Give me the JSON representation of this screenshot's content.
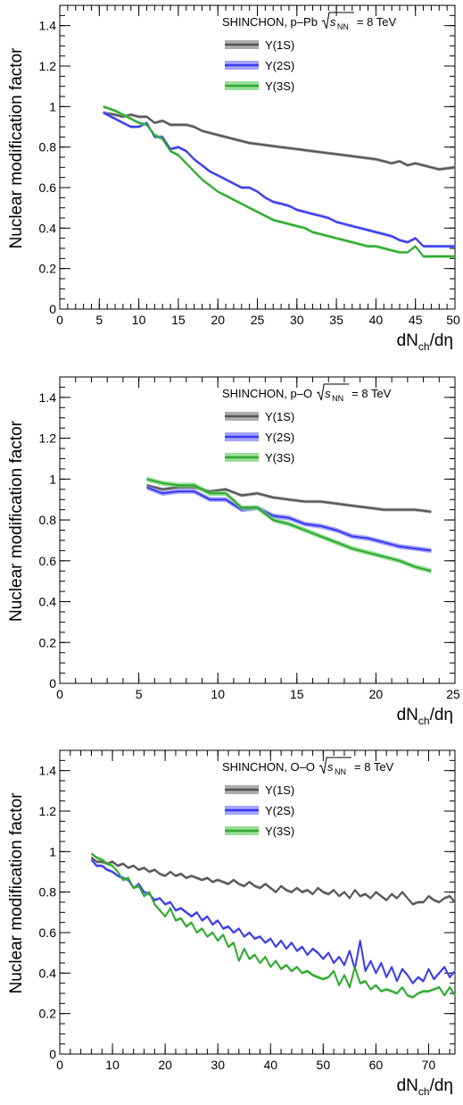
{
  "chart_data": [
    {
      "type": "line",
      "title": "",
      "annotation": {
        "system": "SHINCHON, p–Pb",
        "energy_symbol": "s",
        "energy_subscript": "NN",
        "energy_value": "= 8 TeV"
      },
      "xlabel": {
        "base": "dN",
        "sub": "ch",
        "tail": "/dη"
      },
      "ylabel": "Nuclear modification factor",
      "xlim": [
        0,
        50
      ],
      "ylim": [
        0,
        1.5
      ],
      "xticks": [
        "0",
        "5",
        "10",
        "15",
        "20",
        "25",
        "30",
        "35",
        "40",
        "45",
        "50"
      ],
      "yticks": [
        "0",
        "0.2",
        "0.4",
        "0.6",
        "0.8",
        "1",
        "1.2",
        "1.4"
      ],
      "series": [
        {
          "name": "Υ(1S)",
          "color": "#555555",
          "band_color": "#8a8a8a",
          "x": [
            5.5,
            7,
            8,
            9,
            10,
            11,
            12,
            13,
            14,
            15,
            16,
            17,
            18,
            19,
            20,
            22,
            24,
            26,
            28,
            30,
            32,
            34,
            36,
            38,
            40,
            41,
            42,
            43,
            44,
            45,
            46,
            47,
            48,
            50
          ],
          "y": [
            0.97,
            0.96,
            0.95,
            0.96,
            0.95,
            0.95,
            0.92,
            0.93,
            0.91,
            0.91,
            0.91,
            0.9,
            0.88,
            0.87,
            0.86,
            0.84,
            0.82,
            0.81,
            0.8,
            0.79,
            0.78,
            0.77,
            0.76,
            0.75,
            0.74,
            0.73,
            0.72,
            0.73,
            0.71,
            0.72,
            0.71,
            0.7,
            0.69,
            0.7
          ]
        },
        {
          "name": "Υ(2S)",
          "color": "#3a3aee",
          "band_color": "#7d7df7",
          "x": [
            5.5,
            7,
            8,
            9,
            10,
            11,
            12,
            13,
            14,
            15,
            16,
            17,
            18,
            19,
            20,
            21,
            22,
            23,
            24,
            25,
            26,
            27,
            28,
            29,
            30,
            31,
            32,
            33,
            34,
            35,
            36,
            37,
            38,
            39,
            40,
            41,
            42,
            43,
            44,
            45,
            46,
            47,
            48,
            50
          ],
          "y": [
            0.97,
            0.94,
            0.92,
            0.9,
            0.9,
            0.92,
            0.85,
            0.85,
            0.79,
            0.8,
            0.78,
            0.74,
            0.71,
            0.68,
            0.66,
            0.64,
            0.62,
            0.6,
            0.6,
            0.58,
            0.55,
            0.53,
            0.52,
            0.51,
            0.49,
            0.48,
            0.47,
            0.46,
            0.45,
            0.43,
            0.42,
            0.41,
            0.4,
            0.39,
            0.38,
            0.37,
            0.36,
            0.34,
            0.33,
            0.35,
            0.31,
            0.31,
            0.31,
            0.31
          ]
        },
        {
          "name": "Υ(3S)",
          "color": "#2ea82e",
          "band_color": "#6fd06f",
          "x": [
            5.5,
            7,
            8,
            9,
            10,
            11,
            12,
            13,
            14,
            15,
            16,
            17,
            18,
            19,
            20,
            21,
            22,
            23,
            24,
            25,
            26,
            27,
            28,
            29,
            30,
            31,
            32,
            33,
            34,
            35,
            36,
            37,
            38,
            39,
            40,
            41,
            42,
            43,
            44,
            45,
            46,
            47,
            48,
            50
          ],
          "y": [
            1.0,
            0.98,
            0.96,
            0.94,
            0.92,
            0.91,
            0.86,
            0.84,
            0.78,
            0.76,
            0.72,
            0.68,
            0.64,
            0.61,
            0.58,
            0.56,
            0.54,
            0.52,
            0.5,
            0.48,
            0.46,
            0.44,
            0.43,
            0.42,
            0.41,
            0.4,
            0.38,
            0.37,
            0.36,
            0.35,
            0.34,
            0.33,
            0.32,
            0.31,
            0.31,
            0.3,
            0.29,
            0.28,
            0.28,
            0.31,
            0.26,
            0.26,
            0.26,
            0.26
          ]
        }
      ]
    },
    {
      "type": "line",
      "title": "",
      "annotation": {
        "system": "SHINCHON, p–O",
        "energy_symbol": "s",
        "energy_subscript": "NN",
        "energy_value": "= 8 TeV"
      },
      "xlabel": {
        "base": "dN",
        "sub": "ch",
        "tail": "/dη"
      },
      "ylabel": "Nuclear modification factor",
      "xlim": [
        0,
        25
      ],
      "ylim": [
        0,
        1.5
      ],
      "xticks": [
        "0",
        "5",
        "10",
        "15",
        "20",
        "25"
      ],
      "yticks": [
        "0",
        "0.2",
        "0.4",
        "0.6",
        "0.8",
        "1",
        "1.2",
        "1.4"
      ],
      "series": [
        {
          "name": "Υ(1S)",
          "color": "#555555",
          "band_color": "#8a8a8a",
          "x": [
            5.5,
            6.5,
            7.5,
            8.5,
            9.5,
            10.5,
            11.5,
            12.5,
            13.5,
            14.5,
            15.5,
            16.5,
            17.5,
            18.5,
            19.5,
            20.5,
            21.5,
            22.5,
            23.5
          ],
          "y": [
            0.97,
            0.95,
            0.96,
            0.96,
            0.94,
            0.95,
            0.92,
            0.93,
            0.91,
            0.9,
            0.89,
            0.89,
            0.88,
            0.87,
            0.86,
            0.85,
            0.85,
            0.85,
            0.84
          ]
        },
        {
          "name": "Υ(2S)",
          "color": "#3a3aee",
          "band_color": "#7d7df7",
          "x": [
            5.5,
            6.5,
            7.5,
            8.5,
            9.5,
            10.5,
            11.5,
            12.5,
            13.5,
            14.5,
            15.5,
            16.5,
            17.5,
            18.5,
            19.5,
            20.5,
            21.5,
            22.5,
            23.5
          ],
          "y": [
            0.96,
            0.93,
            0.94,
            0.94,
            0.9,
            0.9,
            0.85,
            0.86,
            0.82,
            0.81,
            0.78,
            0.77,
            0.75,
            0.72,
            0.71,
            0.69,
            0.67,
            0.66,
            0.65
          ]
        },
        {
          "name": "Υ(3S)",
          "color": "#2ea82e",
          "band_color": "#6fd06f",
          "x": [
            5.5,
            6.5,
            7.5,
            8.5,
            9.5,
            10.5,
            11.5,
            12.5,
            13.5,
            14.5,
            15.5,
            16.5,
            17.5,
            18.5,
            19.5,
            20.5,
            21.5,
            22.5,
            23.5
          ],
          "y": [
            1.0,
            0.98,
            0.97,
            0.97,
            0.93,
            0.93,
            0.86,
            0.86,
            0.8,
            0.78,
            0.75,
            0.72,
            0.69,
            0.66,
            0.64,
            0.62,
            0.6,
            0.57,
            0.55
          ]
        }
      ]
    },
    {
      "type": "line",
      "title": "",
      "annotation": {
        "system": "SHINCHON, O–O",
        "energy_symbol": "s",
        "energy_subscript": "NN",
        "energy_value": "= 8 TeV"
      },
      "xlabel": {
        "base": "dN",
        "sub": "ch",
        "tail": "/dη"
      },
      "ylabel": "Nuclear modification factor",
      "xlim": [
        0,
        75
      ],
      "ylim": [
        0,
        1.5
      ],
      "xticks": [
        "0",
        "10",
        "20",
        "30",
        "40",
        "50",
        "60",
        "70"
      ],
      "yticks": [
        "0",
        "0.2",
        "0.4",
        "0.6",
        "0.8",
        "1",
        "1.2",
        "1.4"
      ],
      "series": [
        {
          "name": "Υ(1S)",
          "color": "#555555",
          "band_color": "#8a8a8a",
          "x": [
            6,
            7,
            8,
            9,
            10,
            11,
            12,
            13,
            14,
            15,
            16,
            17,
            18,
            19,
            20,
            21,
            22,
            23,
            24,
            25,
            26,
            27,
            28,
            29,
            30,
            31,
            32,
            33,
            34,
            35,
            36,
            37,
            38,
            39,
            40,
            41,
            42,
            43,
            44,
            45,
            46,
            47,
            48,
            49,
            50,
            51,
            52,
            53,
            54,
            55,
            56,
            57,
            58,
            59,
            60,
            61,
            62,
            63,
            64,
            65,
            66,
            67,
            68,
            69,
            70,
            71,
            72,
            73,
            74,
            75
          ],
          "y": [
            0.97,
            0.95,
            0.95,
            0.94,
            0.95,
            0.93,
            0.94,
            0.92,
            0.93,
            0.91,
            0.92,
            0.9,
            0.91,
            0.89,
            0.88,
            0.9,
            0.88,
            0.89,
            0.87,
            0.88,
            0.87,
            0.86,
            0.87,
            0.85,
            0.86,
            0.85,
            0.84,
            0.86,
            0.84,
            0.83,
            0.85,
            0.83,
            0.82,
            0.84,
            0.82,
            0.8,
            0.83,
            0.81,
            0.8,
            0.82,
            0.8,
            0.81,
            0.79,
            0.82,
            0.8,
            0.79,
            0.81,
            0.78,
            0.8,
            0.77,
            0.81,
            0.78,
            0.79,
            0.77,
            0.8,
            0.78,
            0.76,
            0.79,
            0.77,
            0.8,
            0.77,
            0.74,
            0.75,
            0.75,
            0.78,
            0.76,
            0.75,
            0.77,
            0.78,
            0.75
          ]
        },
        {
          "name": "Υ(2S)",
          "color": "#3a3aee",
          "band_color": "#7d7df7",
          "x": [
            6,
            7,
            8,
            9,
            10,
            11,
            12,
            13,
            14,
            15,
            16,
            17,
            18,
            19,
            20,
            21,
            22,
            23,
            24,
            25,
            26,
            27,
            28,
            29,
            30,
            31,
            32,
            33,
            34,
            35,
            36,
            37,
            38,
            39,
            40,
            41,
            42,
            43,
            44,
            45,
            46,
            47,
            48,
            49,
            50,
            51,
            52,
            53,
            54,
            55,
            56,
            57,
            58,
            59,
            60,
            61,
            62,
            63,
            64,
            65,
            66,
            67,
            68,
            69,
            70,
            71,
            72,
            73,
            74,
            75
          ],
          "y": [
            0.96,
            0.93,
            0.93,
            0.91,
            0.9,
            0.88,
            0.87,
            0.86,
            0.82,
            0.84,
            0.8,
            0.79,
            0.76,
            0.77,
            0.74,
            0.75,
            0.71,
            0.72,
            0.7,
            0.68,
            0.7,
            0.66,
            0.68,
            0.64,
            0.66,
            0.62,
            0.63,
            0.6,
            0.62,
            0.58,
            0.6,
            0.57,
            0.58,
            0.55,
            0.57,
            0.53,
            0.56,
            0.52,
            0.55,
            0.51,
            0.53,
            0.49,
            0.52,
            0.5,
            0.47,
            0.5,
            0.45,
            0.48,
            0.44,
            0.51,
            0.42,
            0.56,
            0.41,
            0.46,
            0.4,
            0.45,
            0.38,
            0.43,
            0.36,
            0.42,
            0.39,
            0.35,
            0.38,
            0.36,
            0.42,
            0.37,
            0.4,
            0.43,
            0.38,
            0.41
          ]
        },
        {
          "name": "Υ(3S)",
          "color": "#2ea82e",
          "band_color": "#6fd06f",
          "x": [
            6,
            7,
            8,
            9,
            10,
            11,
            12,
            13,
            14,
            15,
            16,
            17,
            18,
            19,
            20,
            21,
            22,
            23,
            24,
            25,
            26,
            27,
            28,
            29,
            30,
            31,
            32,
            33,
            34,
            35,
            36,
            37,
            38,
            39,
            40,
            41,
            42,
            43,
            44,
            45,
            46,
            47,
            48,
            49,
            50,
            51,
            52,
            53,
            54,
            55,
            56,
            57,
            58,
            59,
            60,
            61,
            62,
            63,
            64,
            65,
            66,
            67,
            68,
            69,
            70,
            71,
            72,
            73,
            74,
            75
          ],
          "y": [
            0.99,
            0.97,
            0.96,
            0.94,
            0.93,
            0.9,
            0.86,
            0.87,
            0.82,
            0.83,
            0.78,
            0.8,
            0.74,
            0.71,
            0.68,
            0.72,
            0.66,
            0.67,
            0.63,
            0.65,
            0.6,
            0.62,
            0.58,
            0.6,
            0.56,
            0.59,
            0.53,
            0.55,
            0.46,
            0.52,
            0.47,
            0.49,
            0.45,
            0.48,
            0.43,
            0.46,
            0.42,
            0.44,
            0.41,
            0.43,
            0.4,
            0.41,
            0.39,
            0.38,
            0.37,
            0.38,
            0.41,
            0.34,
            0.39,
            0.33,
            0.43,
            0.35,
            0.36,
            0.32,
            0.34,
            0.31,
            0.32,
            0.31,
            0.3,
            0.33,
            0.29,
            0.28,
            0.3,
            0.31,
            0.31,
            0.32,
            0.33,
            0.29,
            0.33,
            0.29
          ]
        }
      ]
    }
  ]
}
